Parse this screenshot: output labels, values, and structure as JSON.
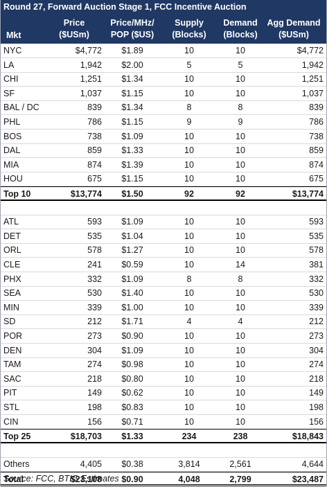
{
  "title": "Round 27, Forward Auction Stage 1, FCC Incentive Auction",
  "columns": [
    {
      "line1": "",
      "line2": "Mkt"
    },
    {
      "line1": "Price",
      "line2": "($USm)"
    },
    {
      "line1": "Price/MHz/",
      "line2": "POP ($US)"
    },
    {
      "line1": "Supply",
      "line2": "(Blocks)"
    },
    {
      "line1": "Demand",
      "line2": "(Blocks)"
    },
    {
      "line1": "Agg Demand",
      "line2": "($USm)"
    }
  ],
  "rows": [
    {
      "kind": "data",
      "cells": [
        "NYC",
        "$4,772",
        "$1.89",
        "10",
        "10",
        "$4,772"
      ]
    },
    {
      "kind": "data",
      "cells": [
        "LA",
        "1,942",
        "$2.00",
        "5",
        "5",
        "1,942"
      ]
    },
    {
      "kind": "data",
      "cells": [
        "CHI",
        "1,251",
        "$1.34",
        "10",
        "10",
        "1,251"
      ]
    },
    {
      "kind": "data",
      "cells": [
        "SF",
        "1,037",
        "$1.15",
        "10",
        "10",
        "1,037"
      ]
    },
    {
      "kind": "data",
      "cells": [
        "BAL / DC",
        "839",
        "$1.34",
        "8",
        "8",
        "839"
      ]
    },
    {
      "kind": "data",
      "cells": [
        "PHL",
        "786",
        "$1.15",
        "9",
        "9",
        "786"
      ]
    },
    {
      "kind": "data",
      "cells": [
        "BOS",
        "738",
        "$1.09",
        "10",
        "10",
        "738"
      ]
    },
    {
      "kind": "data",
      "cells": [
        "DAL",
        "859",
        "$1.33",
        "10",
        "10",
        "859"
      ]
    },
    {
      "kind": "data",
      "cells": [
        "MIA",
        "874",
        "$1.39",
        "10",
        "10",
        "874"
      ]
    },
    {
      "kind": "data",
      "cells": [
        "HOU",
        "675",
        "$1.15",
        "10",
        "10",
        "675"
      ]
    },
    {
      "kind": "total",
      "cells": [
        "Top 10",
        "$13,774",
        "$1.50",
        "92",
        "92",
        "$13,774"
      ]
    },
    {
      "kind": "blank",
      "cells": [
        "",
        "",
        "",
        "",
        "",
        ""
      ]
    },
    {
      "kind": "data",
      "cells": [
        "ATL",
        "593",
        "$1.09",
        "10",
        "10",
        "593"
      ]
    },
    {
      "kind": "data",
      "cells": [
        "DET",
        "535",
        "$1.04",
        "10",
        "10",
        "535"
      ]
    },
    {
      "kind": "data",
      "cells": [
        "ORL",
        "578",
        "$1.27",
        "10",
        "10",
        "578"
      ]
    },
    {
      "kind": "data",
      "cells": [
        "CLE",
        "241",
        "$0.59",
        "10",
        "14",
        "381"
      ]
    },
    {
      "kind": "data",
      "cells": [
        "PHX",
        "332",
        "$1.09",
        "8",
        "8",
        "332"
      ]
    },
    {
      "kind": "data",
      "cells": [
        "SEA",
        "530",
        "$1.40",
        "10",
        "10",
        "530"
      ]
    },
    {
      "kind": "data",
      "cells": [
        "MIN",
        "339",
        "$1.00",
        "10",
        "10",
        "339"
      ]
    },
    {
      "kind": "data",
      "cells": [
        "SD",
        "212",
        "$1.71",
        "4",
        "4",
        "212"
      ]
    },
    {
      "kind": "data",
      "cells": [
        "POR",
        "273",
        "$0.90",
        "10",
        "10",
        "273"
      ]
    },
    {
      "kind": "data",
      "cells": [
        "DEN",
        "304",
        "$1.09",
        "10",
        "10",
        "304"
      ]
    },
    {
      "kind": "data",
      "cells": [
        "TAM",
        "274",
        "$0.98",
        "10",
        "10",
        "274"
      ]
    },
    {
      "kind": "data",
      "cells": [
        "SAC",
        "218",
        "$0.80",
        "10",
        "10",
        "218"
      ]
    },
    {
      "kind": "data",
      "cells": [
        "PIT",
        "149",
        "$0.62",
        "10",
        "10",
        "149"
      ]
    },
    {
      "kind": "data",
      "cells": [
        "STL",
        "198",
        "$0.83",
        "10",
        "10",
        "198"
      ]
    },
    {
      "kind": "data",
      "cells": [
        "CIN",
        "156",
        "$0.71",
        "10",
        "10",
        "156"
      ]
    },
    {
      "kind": "total",
      "cells": [
        "Top 25",
        "$18,703",
        "$1.33",
        "234",
        "238",
        "$18,843"
      ]
    },
    {
      "kind": "blank",
      "cells": [
        "",
        "",
        "",
        "",
        "",
        ""
      ]
    },
    {
      "kind": "data",
      "cells": [
        "Others",
        "4,405",
        "$0.38",
        "3,814",
        "2,561",
        "4,644"
      ]
    },
    {
      "kind": "grand",
      "cells": [
        "Total",
        "$23,108",
        "$0.90",
        "4,048",
        "2,799",
        "$23,487"
      ]
    }
  ],
  "source": "Source: FCC, BTIG Estimates",
  "colors": {
    "header_bg": "#1f3864",
    "header_text": "#ffffff"
  }
}
